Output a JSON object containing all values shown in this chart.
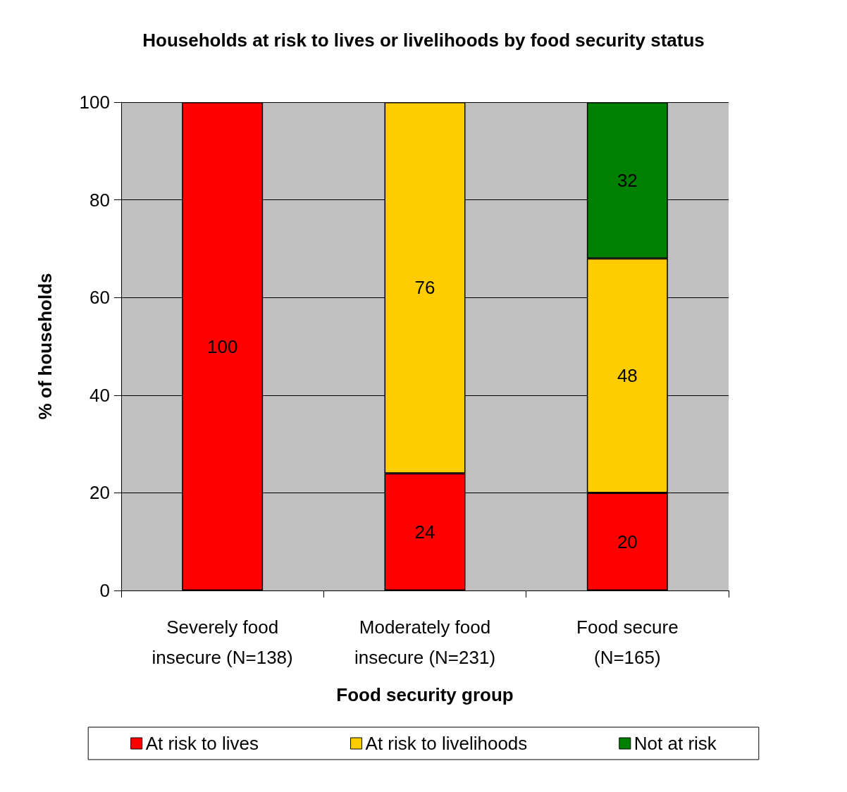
{
  "chart_data": {
    "type": "bar",
    "title": "Households at risk to lives or livelihoods by food security status",
    "xlabel": "Food security group",
    "ylabel": "% of households",
    "categories": [
      "Severely food\ninsecure (N=138)",
      "Moderately food\ninsecure (N=231)",
      "Food secure\n(N=165)"
    ],
    "series": [
      {
        "name": "At risk to lives",
        "color": "#ff0000",
        "values": [
          100,
          24,
          20
        ]
      },
      {
        "name": "At risk to livelihoods",
        "color": "#ffcc00",
        "values": [
          null,
          76,
          48
        ]
      },
      {
        "name": "Not at risk",
        "color": "#008000",
        "values": [
          null,
          null,
          32
        ]
      }
    ],
    "stacked": true,
    "data_labels": true,
    "ylim": [
      0,
      100
    ],
    "yticks": [
      0,
      20,
      40,
      60,
      80,
      100
    ],
    "grid": "y",
    "legend": "bottom"
  }
}
